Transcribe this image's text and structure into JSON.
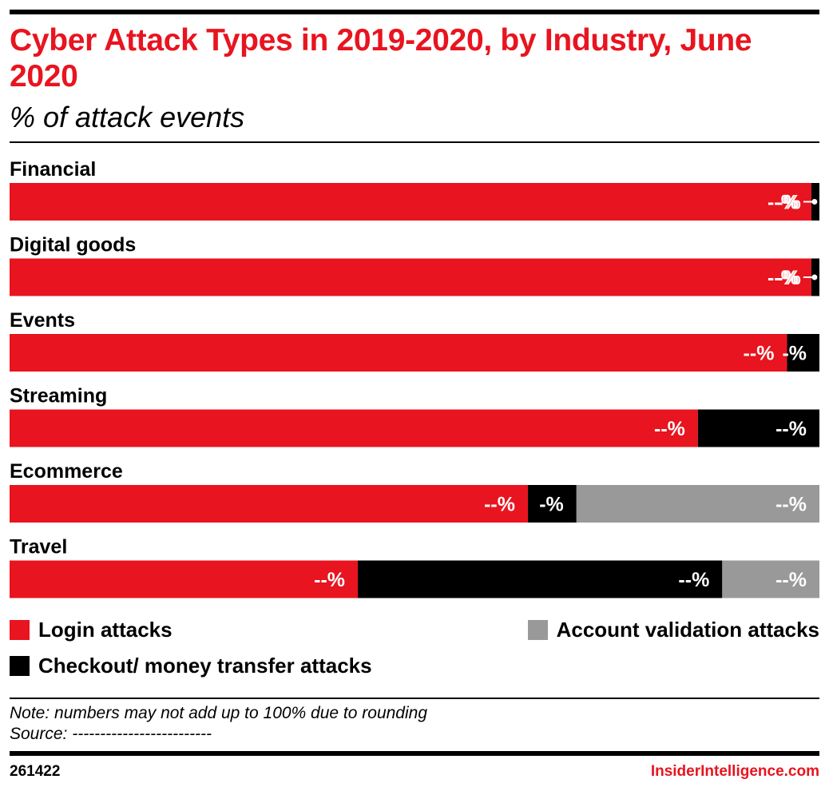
{
  "title": "Cyber Attack Types in 2019-2020, by Industry, June 2020",
  "subtitle": "% of attack events",
  "colors": {
    "login": "#e8141f",
    "checkout": "#000000",
    "account": "#999999",
    "brand": "#e8141f"
  },
  "chart_data": {
    "type": "bar",
    "orientation": "horizontal",
    "stacked": true,
    "xlim": [
      0,
      100
    ],
    "categories": [
      "Financial",
      "Digital goods",
      "Events",
      "Streaming",
      "Ecommerce",
      "Travel"
    ],
    "series": [
      {
        "name": "Login attacks",
        "color": "#e8141f",
        "values": [
          99,
          99,
          96,
          85,
          64,
          43
        ],
        "labels": [
          "--%",
          "--%",
          "--%",
          "--%",
          "--%",
          "--%"
        ]
      },
      {
        "name": "Checkout/ money transfer attacks",
        "color": "#000000",
        "values": [
          1,
          1,
          4,
          15,
          6,
          45
        ],
        "labels": [
          "",
          "",
          "-%",
          "--%",
          "-%",
          "--%"
        ]
      },
      {
        "name": "Account validation attacks",
        "color": "#999999",
        "values": [
          0,
          0,
          0,
          0,
          30,
          12
        ],
        "labels": [
          "",
          "",
          "",
          "",
          "--%",
          "--%"
        ]
      }
    ],
    "callouts": [
      "-%",
      "-%",
      "",
      "",
      "",
      ""
    ],
    "legend_position": "bottom"
  },
  "legend": {
    "login": "Login attacks",
    "account": "Account validation attacks",
    "checkout": "Checkout/ money transfer attacks"
  },
  "note": "Note: numbers may not add up to 100% due to rounding",
  "source": "Source: -------------------------",
  "footer": {
    "id": "261422",
    "brand": "InsiderIntelligence.com"
  }
}
